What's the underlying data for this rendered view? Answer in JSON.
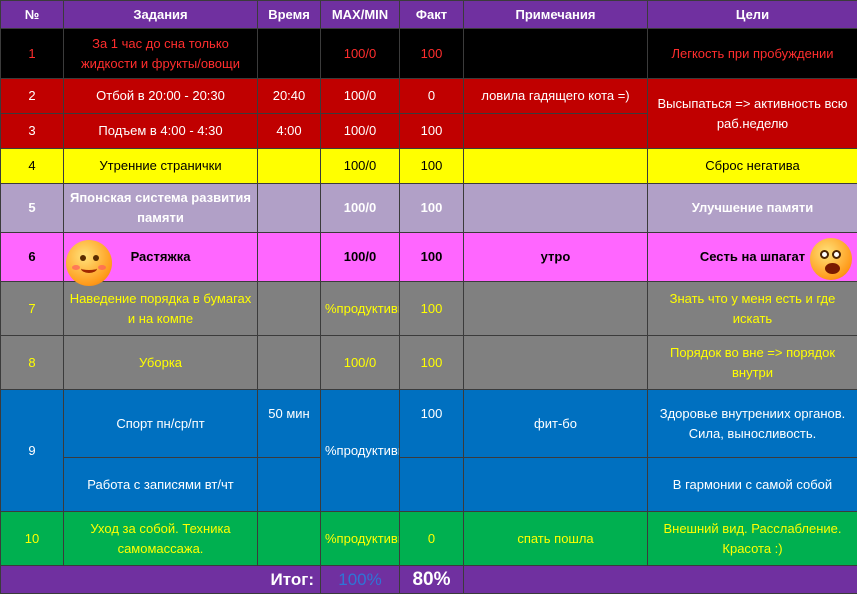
{
  "header": {
    "num": "№",
    "tasks": "Задания",
    "time": "Время",
    "maxmin": "MAX/MIN",
    "fact": "Факт",
    "notes": "Примечания",
    "goals": "Цели"
  },
  "rows": [
    {
      "num": "1",
      "task": "За 1 час до сна только жидкости и фрукты/овощи",
      "time": "",
      "maxmin": "100/0",
      "fact": "100",
      "note": "",
      "goal": "Легкость при пробуждении"
    },
    {
      "num": "2",
      "task": "Отбой в 20:00 - 20:30",
      "time": "20:40",
      "maxmin": "100/0",
      "fact": "0",
      "note": "ловила гадящего кота =)",
      "goal": "Высыпаться => активность всю раб.неделю"
    },
    {
      "num": "3",
      "task": "Подъем в 4:00 - 4:30",
      "time": "4:00",
      "maxmin": "100/0",
      "fact": "100",
      "note": ""
    },
    {
      "num": "4",
      "task": "Утренние странички",
      "time": "",
      "maxmin": "100/0",
      "fact": "100",
      "note": "",
      "goal": "Сброс негатива"
    },
    {
      "num": "5",
      "task": "Японская система развития памяти",
      "time": "",
      "maxmin": "100/0",
      "fact": "100",
      "note": "",
      "goal": "Улучшение памяти"
    },
    {
      "num": "6",
      "task": "Растяжка",
      "time": "",
      "maxmin": "100/0",
      "fact": "100",
      "note": "утро",
      "goal": "Сесть на шпагат"
    },
    {
      "num": "7",
      "task": "Наведение порядка в бумагах и на компе",
      "time": "",
      "maxmin": "%продуктивности",
      "fact": "100",
      "note": "",
      "goal": "Знать что у меня есть и где искать"
    },
    {
      "num": "8",
      "task": "Уборка",
      "time": "",
      "maxmin": "100/0",
      "fact": "100",
      "note": "",
      "goal": "Порядок во вне => порядок внутри"
    },
    {
      "num": "9",
      "task": "Спорт пн/ср/пт",
      "time": "50 мин",
      "maxmin": "%продуктивности",
      "fact": "100",
      "note": "фит-бо",
      "goal": "Здоровье внутрениих органов. Сила, выносливость."
    },
    {
      "task": "Работа с записями вт/чт",
      "note": "",
      "goal": "В гармонии с самой собой"
    },
    {
      "num": "10",
      "task": "Уход за собой. Техника самомассажа.",
      "time": "",
      "maxmin": "%продуктивности",
      "fact": "0",
      "note": "спать пошла",
      "goal": "Внешний вид. Расслабление. Красота :)"
    }
  ],
  "total": {
    "label": "Итог:",
    "plan": "100%",
    "fact": "80%"
  },
  "icons": [
    "smiley-icon",
    "smiley-icon"
  ]
}
